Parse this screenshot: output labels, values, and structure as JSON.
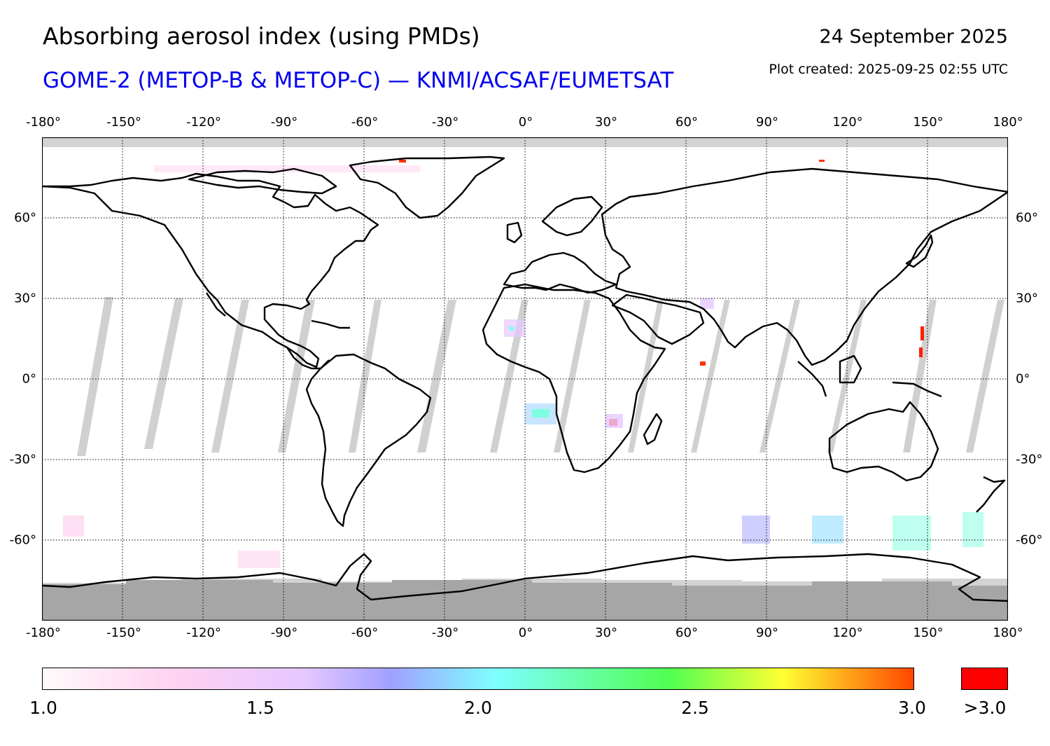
{
  "header": {
    "title": "Absorbing aerosol index (using PMDs)",
    "subtitle": "GOME-2 (METOP-B & METOP-C) — KNMI/ACSAF/EUMETSAT",
    "date": "24 September 2025",
    "created": "Plot created: 2025-09-25 02:55 UTC"
  },
  "map": {
    "projection": "equirectangular",
    "lon_range": [
      -180,
      180
    ],
    "lat_range": [
      -90,
      90
    ],
    "gridlines": "dotted",
    "lon_ticks": [
      "-180°",
      "-150°",
      "-120°",
      "-90°",
      "-60°",
      "-30°",
      "0°",
      "30°",
      "60°",
      "90°",
      "120°",
      "150°",
      "180°"
    ],
    "lat_ticks": [
      "60°",
      "30°",
      "0°",
      "-30°",
      "-60°"
    ],
    "colors": {
      "no_data": "#d3d3d3",
      "polar_night": "#a9a9a9",
      "coastline": "#000000"
    }
  },
  "colorbar": {
    "labels": [
      "1.0",
      "1.5",
      "2.0",
      "2.5",
      "3.0"
    ],
    "over_label": ">3.0",
    "range": [
      1.0,
      3.0
    ],
    "stops": [
      "#fffafa",
      "#ffd2f0",
      "#e6c8ff",
      "#a0a0ff",
      "#7dffff",
      "#50ff50",
      "#ffff32",
      "#ff4600"
    ],
    "over_color": "#ff0000"
  }
}
